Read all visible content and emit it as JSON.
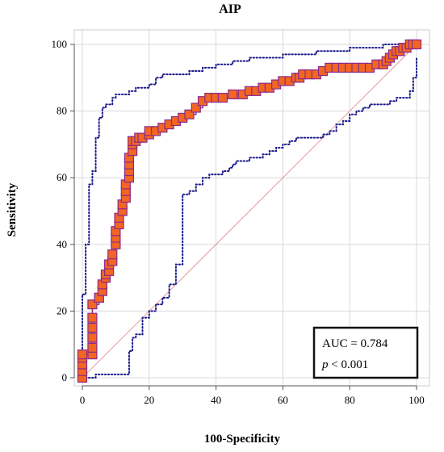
{
  "chart_data": {
    "type": "line",
    "title": "AIP",
    "xlabel": "100-Specificity",
    "ylabel": "Sensitivity",
    "xlim": [
      0,
      100
    ],
    "ylim": [
      0,
      100
    ],
    "xticks": [
      0,
      20,
      40,
      60,
      80,
      100
    ],
    "yticks": [
      0,
      20,
      40,
      60,
      80,
      100
    ],
    "grid": true,
    "annotation": {
      "auc_text": "AUC = 0.784",
      "p_letter": "p",
      "p_rest": " < 0.001",
      "placement": "bottom-right"
    },
    "colors": {
      "roc_fill": "#f26522",
      "roc_edge": "#8a2b8a",
      "ci": "#1a1a8c",
      "diagonal": "#e89a9a",
      "grid": "#d9d9d9"
    },
    "series": [
      {
        "role": "roc",
        "x": [
          0,
          0,
          0,
          0,
          0,
          3,
          3,
          3,
          3,
          3,
          3,
          5,
          5,
          6,
          6,
          7,
          7,
          8,
          8,
          9,
          9,
          10,
          10,
          10,
          11,
          11,
          12,
          12,
          13,
          13,
          13,
          14,
          14,
          14,
          14,
          15,
          15,
          15,
          16,
          17,
          18,
          20,
          20,
          22,
          24,
          26,
          28,
          30,
          32,
          34,
          36,
          38,
          40,
          42,
          45,
          48,
          50,
          52,
          54,
          56,
          58,
          60,
          62,
          64,
          65,
          66,
          68,
          70,
          72,
          74,
          76,
          78,
          80,
          82,
          84,
          86,
          88,
          90,
          91,
          92,
          93,
          94,
          95,
          96,
          97,
          98,
          99,
          100
        ],
        "y": [
          0,
          2,
          4,
          6,
          7,
          7,
          9,
          12,
          15,
          18,
          22,
          24,
          24,
          26,
          28,
          30,
          31,
          32,
          34,
          35,
          37,
          40,
          42,
          44,
          46,
          48,
          50,
          52,
          54,
          56,
          58,
          60,
          62,
          64,
          66,
          68,
          70,
          71,
          71,
          72,
          72,
          73,
          74,
          74,
          75,
          76,
          77,
          78,
          79,
          81,
          83,
          84,
          84,
          84,
          85,
          85,
          86,
          86,
          87,
          87,
          88,
          89,
          89,
          90,
          90,
          91,
          91,
          91,
          92,
          93,
          93,
          93,
          93,
          93,
          93,
          93,
          94,
          94,
          95,
          96,
          97,
          98,
          98,
          99,
          99,
          100,
          100,
          100
        ]
      },
      {
        "role": "ci-upper",
        "x": [
          0,
          0,
          0,
          1,
          1,
          2,
          2,
          3,
          4,
          5,
          6,
          7,
          9,
          10,
          12,
          14,
          16,
          18,
          20,
          22,
          24,
          28,
          32,
          36,
          40,
          45,
          50,
          55,
          60,
          65,
          70,
          75,
          80,
          85,
          90,
          95,
          100
        ],
        "y": [
          0,
          10,
          25,
          36,
          40,
          52,
          58,
          62,
          72,
          78,
          81,
          82,
          84,
          85,
          85,
          86,
          87,
          87,
          88,
          90,
          91,
          91,
          92,
          93,
          94,
          95,
          96,
          96,
          97,
          97,
          98,
          98,
          99,
          99,
          100,
          100,
          100
        ]
      },
      {
        "role": "ci-lower",
        "x": [
          0,
          2,
          4,
          6,
          8,
          10,
          12,
          14,
          14,
          15,
          16,
          18,
          18,
          20,
          22,
          24,
          26,
          28,
          30,
          30,
          32,
          34,
          36,
          38,
          40,
          42,
          44,
          45,
          46,
          48,
          50,
          52,
          54,
          56,
          58,
          60,
          62,
          64,
          66,
          68,
          70,
          72,
          74,
          76,
          78,
          80,
          82,
          84,
          86,
          88,
          90,
          92,
          94,
          96,
          98,
          99,
          100
        ],
        "y": [
          0,
          0,
          1,
          1,
          1,
          1,
          1,
          1,
          8,
          12,
          13,
          13,
          18,
          20,
          22,
          24,
          28,
          34,
          40,
          55,
          56,
          58,
          60,
          61,
          61,
          62,
          63,
          64,
          65,
          65,
          66,
          66,
          67,
          68,
          69,
          70,
          71,
          72,
          72,
          72,
          72,
          73,
          74,
          76,
          77,
          79,
          80,
          81,
          82,
          82,
          82,
          83,
          84,
          84,
          86,
          90,
          96
        ]
      }
    ]
  }
}
